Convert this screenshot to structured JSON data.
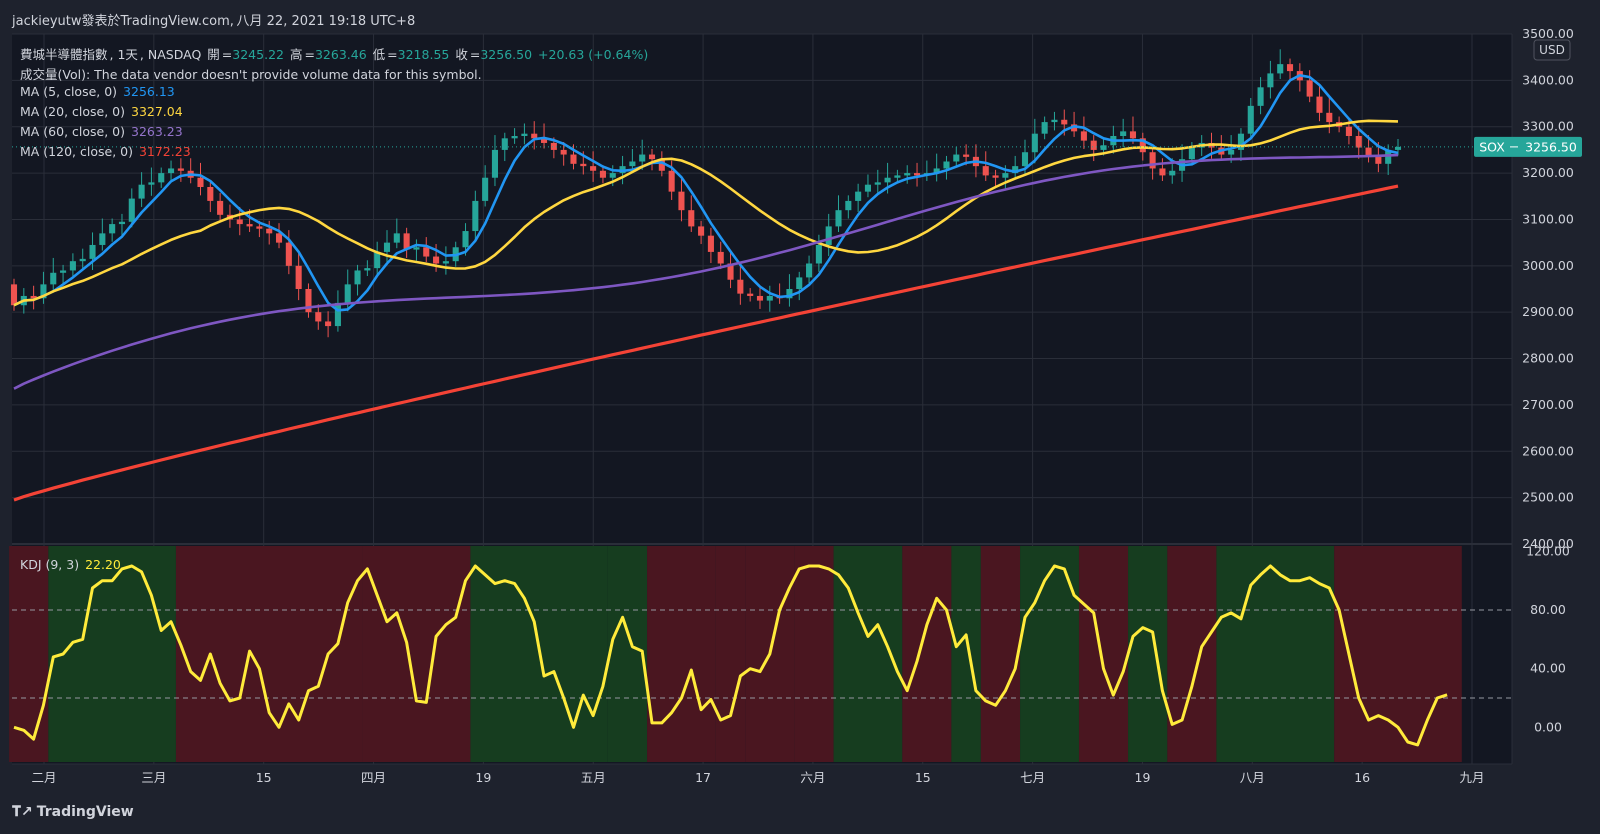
{
  "header": {
    "publisher": "jackieyutw發表於TradingView.com",
    "date_sep": ",",
    "datetime": "八月 22, 2021 19:18 UTC+8"
  },
  "legend": {
    "symbol_line": {
      "name": "費城半導體指數",
      "interval": "1天",
      "exchange": "NASDAQ",
      "open_label": "開",
      "open": "3245.22",
      "high_label": "高",
      "high": "3263.46",
      "low_label": "低",
      "low": "3218.55",
      "close_label": "收",
      "close": "3256.50",
      "change": "+20.63 (+0.64%)"
    },
    "volume_line": "成交量(Vol): The data vendor doesn't provide volume data for this symbol.",
    "ma": [
      {
        "label": "MA (5, close, 0)",
        "value": "3256.13",
        "color": "#2196f3"
      },
      {
        "label": "MA (20, close, 0)",
        "value": "3327.04",
        "color": "#ffd740"
      },
      {
        "label": "MA (60, close, 0)",
        "value": "3263.23",
        "color": "#7e57c2"
      },
      {
        "label": "MA (120, close, 0)",
        "value": "3172.23",
        "color": "#f44336"
      }
    ],
    "kdj": {
      "label": "KDJ (9, 3)",
      "value": "22.20",
      "color": "#ffeb3b"
    }
  },
  "currency": "USD",
  "price_tag": {
    "symbol": "SOX",
    "value": "3256.50",
    "color": "#26a69a"
  },
  "brand": "TradingView",
  "colors": {
    "bg": "#1e222d",
    "up": "#26a69a",
    "down": "#ef5350",
    "grid": "#2a2e39",
    "kdj_green": "#163d1f",
    "kdj_red": "#4a1620"
  },
  "chart_data": [
    {
      "type": "candlestick",
      "title": "費城半導體指數",
      "ylim": [
        2400,
        3500
      ],
      "yticks": [
        "3500.00",
        "3400.00",
        "3300.00",
        "3200.00",
        "3100.00",
        "3000.00",
        "2900.00",
        "2800.00",
        "2700.00",
        "2600.00",
        "2500.00",
        "2400.00"
      ],
      "xticks": [
        "二月",
        "三月",
        "15",
        "四月",
        "19",
        "五月",
        "17",
        "六月",
        "15",
        "七月",
        "19",
        "八月",
        "16",
        "九月"
      ],
      "last_price": 3256.5,
      "candles": [
        [
          2960,
          2915
        ],
        [
          2915,
          2935
        ],
        [
          2935,
          2930
        ],
        [
          2930,
          2960
        ],
        [
          2960,
          2985
        ],
        [
          2985,
          2990
        ],
        [
          2990,
          3010
        ],
        [
          3010,
          3015
        ],
        [
          3015,
          3045
        ],
        [
          3045,
          3070
        ],
        [
          3070,
          3090
        ],
        [
          3090,
          3095
        ],
        [
          3095,
          3145
        ],
        [
          3145,
          3175
        ],
        [
          3175,
          3180
        ],
        [
          3180,
          3200
        ],
        [
          3200,
          3210
        ],
        [
          3210,
          3205
        ],
        [
          3205,
          3190
        ],
        [
          3190,
          3170
        ],
        [
          3170,
          3140
        ],
        [
          3140,
          3110
        ],
        [
          3110,
          3100
        ],
        [
          3100,
          3090
        ],
        [
          3090,
          3085
        ],
        [
          3085,
          3080
        ],
        [
          3080,
          3070
        ],
        [
          3070,
          3050
        ],
        [
          3050,
          3000
        ],
        [
          3000,
          2950
        ],
        [
          2950,
          2900
        ],
        [
          2900,
          2880
        ],
        [
          2880,
          2870
        ],
        [
          2870,
          2920
        ],
        [
          2920,
          2960
        ],
        [
          2960,
          2990
        ],
        [
          2990,
          2995
        ],
        [
          2995,
          3030
        ],
        [
          3030,
          3050
        ],
        [
          3050,
          3070
        ],
        [
          3070,
          3035
        ],
        [
          3035,
          3040
        ],
        [
          3040,
          3020
        ],
        [
          3020,
          3005
        ],
        [
          3005,
          3010
        ],
        [
          3010,
          3040
        ],
        [
          3040,
          3075
        ],
        [
          3075,
          3140
        ],
        [
          3140,
          3190
        ],
        [
          3190,
          3250
        ],
        [
          3250,
          3275
        ],
        [
          3275,
          3280
        ],
        [
          3280,
          3285
        ],
        [
          3285,
          3275
        ],
        [
          3275,
          3265
        ],
        [
          3265,
          3250
        ],
        [
          3250,
          3240
        ],
        [
          3240,
          3220
        ],
        [
          3220,
          3215
        ],
        [
          3215,
          3205
        ],
        [
          3205,
          3190
        ],
        [
          3190,
          3200
        ],
        [
          3200,
          3215
        ],
        [
          3215,
          3225
        ],
        [
          3225,
          3240
        ],
        [
          3240,
          3230
        ],
        [
          3230,
          3205
        ],
        [
          3205,
          3160
        ],
        [
          3160,
          3120
        ],
        [
          3120,
          3085
        ],
        [
          3085,
          3065
        ],
        [
          3065,
          3030
        ],
        [
          3030,
          3005
        ],
        [
          3005,
          2970
        ],
        [
          2970,
          2940
        ],
        [
          2940,
          2935
        ],
        [
          2935,
          2925
        ],
        [
          2925,
          2935
        ],
        [
          2935,
          2930
        ],
        [
          2930,
          2950
        ],
        [
          2950,
          2975
        ],
        [
          2975,
          3005
        ],
        [
          3005,
          3045
        ],
        [
          3045,
          3085
        ],
        [
          3085,
          3120
        ],
        [
          3120,
          3140
        ],
        [
          3140,
          3160
        ],
        [
          3160,
          3175
        ],
        [
          3175,
          3180
        ],
        [
          3180,
          3190
        ],
        [
          3190,
          3195
        ],
        [
          3195,
          3200
        ],
        [
          3200,
          3195
        ],
        [
          3195,
          3200
        ],
        [
          3200,
          3210
        ],
        [
          3210,
          3225
        ],
        [
          3225,
          3240
        ],
        [
          3240,
          3235
        ],
        [
          3235,
          3215
        ],
        [
          3215,
          3195
        ],
        [
          3195,
          3190
        ],
        [
          3190,
          3200
        ],
        [
          3200,
          3215
        ],
        [
          3215,
          3245
        ],
        [
          3245,
          3285
        ],
        [
          3285,
          3310
        ],
        [
          3310,
          3315
        ],
        [
          3315,
          3305
        ],
        [
          3305,
          3290
        ],
        [
          3290,
          3270
        ],
        [
          3270,
          3250
        ],
        [
          3250,
          3260
        ],
        [
          3260,
          3280
        ],
        [
          3280,
          3290
        ],
        [
          3290,
          3275
        ],
        [
          3275,
          3245
        ],
        [
          3245,
          3210
        ],
        [
          3210,
          3195
        ],
        [
          3195,
          3205
        ],
        [
          3205,
          3230
        ],
        [
          3230,
          3255
        ],
        [
          3255,
          3265
        ],
        [
          3265,
          3255
        ],
        [
          3255,
          3240
        ],
        [
          3240,
          3250
        ],
        [
          3250,
          3285
        ],
        [
          3285,
          3345
        ],
        [
          3345,
          3385
        ],
        [
          3385,
          3415
        ],
        [
          3415,
          3435
        ],
        [
          3435,
          3420
        ],
        [
          3420,
          3400
        ],
        [
          3400,
          3365
        ],
        [
          3365,
          3330
        ],
        [
          3330,
          3310
        ],
        [
          3310,
          3300
        ],
        [
          3300,
          3280
        ],
        [
          3280,
          3255
        ],
        [
          3255,
          3235
        ],
        [
          3235,
          3220
        ],
        [
          3220,
          3250
        ],
        [
          3250,
          3256.5
        ]
      ]
    },
    {
      "type": "line",
      "title": "KDJ (9, 3)",
      "ylim": [
        -25,
        125
      ],
      "yticks": [
        "120.00",
        "80.00",
        "40.00",
        "0.00"
      ],
      "reference_lines": [
        80,
        20
      ],
      "values": [
        0,
        -2,
        -8,
        15,
        48,
        50,
        58,
        60,
        95,
        100,
        100,
        108,
        110,
        106,
        90,
        66,
        72,
        56,
        38,
        32,
        50,
        30,
        18,
        20,
        52,
        40,
        10,
        0,
        16,
        5,
        25,
        28,
        50,
        57,
        85,
        100,
        108,
        90,
        72,
        78,
        58,
        18,
        17,
        62,
        70,
        75,
        100,
        110,
        104,
        98,
        100,
        98,
        88,
        72,
        35,
        38,
        20,
        0,
        22,
        8,
        28,
        60,
        75,
        55,
        52,
        3,
        3,
        10,
        20,
        39,
        12,
        19,
        5,
        8,
        35,
        40,
        38,
        50,
        80,
        95,
        108,
        110,
        110,
        108,
        104,
        95,
        78,
        62,
        70,
        55,
        38,
        25,
        45,
        70,
        88,
        80,
        55,
        63,
        25,
        18,
        15,
        25,
        40,
        75,
        85,
        100,
        110,
        108,
        90,
        84,
        78,
        40,
        22,
        38,
        62,
        68,
        65,
        25,
        2,
        5,
        28,
        55,
        65,
        75,
        78,
        74,
        97,
        104,
        110,
        104,
        100,
        100,
        102,
        98,
        95,
        80,
        50,
        20,
        5,
        8,
        5,
        0,
        -10,
        -12,
        5,
        20,
        22.2
      ],
      "bands": [
        [
          0,
          3,
          "red"
        ],
        [
          4,
          16,
          "green"
        ],
        [
          17,
          35,
          "red"
        ],
        [
          36,
          46,
          "red"
        ],
        [
          47,
          60,
          "green"
        ],
        [
          61,
          64,
          "green"
        ],
        [
          65,
          71,
          "red"
        ],
        [
          72,
          74,
          "red"
        ],
        [
          75,
          79,
          "red"
        ],
        [
          80,
          83,
          "red"
        ],
        [
          84,
          90,
          "green"
        ],
        [
          91,
          95,
          "red"
        ],
        [
          96,
          98,
          "green"
        ],
        [
          99,
          102,
          "red"
        ],
        [
          103,
          108,
          "green"
        ],
        [
          109,
          113,
          "red"
        ],
        [
          114,
          117,
          "green"
        ],
        [
          118,
          122,
          "red"
        ],
        [
          123,
          134,
          "green"
        ],
        [
          135,
          147,
          "red"
        ]
      ]
    }
  ]
}
